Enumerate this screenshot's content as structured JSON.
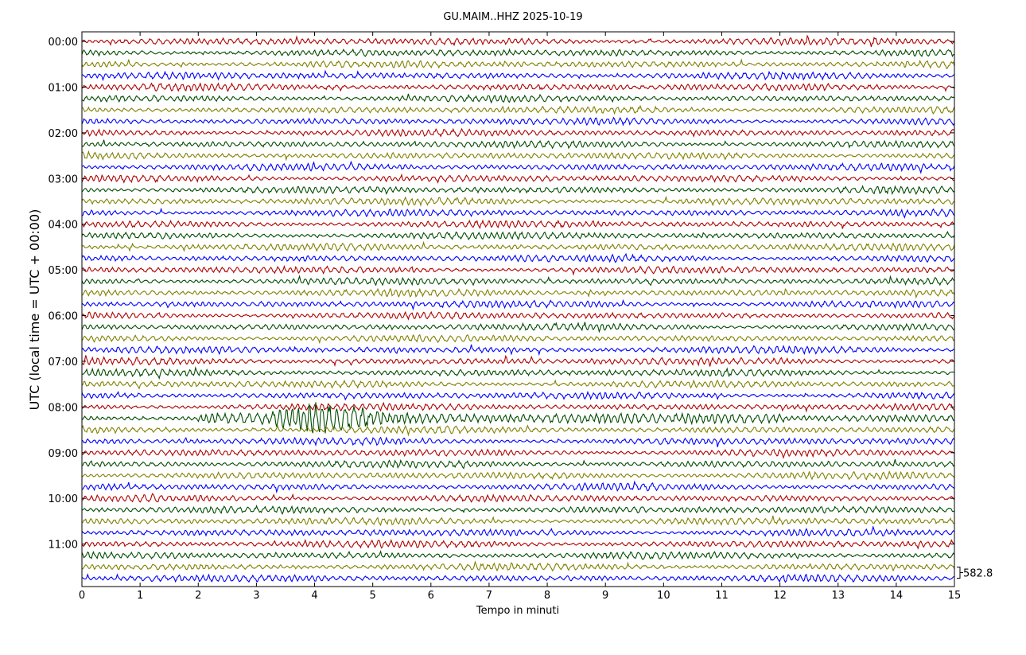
{
  "chart_data": {
    "type": "helicorder",
    "title": "GU.MAIM..HHZ 2025-10-19",
    "x_label": "Tempo in minuti",
    "y_label": "UTC (local time = UTC + 00:00)",
    "xlim": [
      0,
      15
    ],
    "xticks": [
      0,
      1,
      2,
      3,
      4,
      5,
      6,
      7,
      8,
      9,
      10,
      11,
      12,
      13,
      14,
      15
    ],
    "ylim": [
      -0.21,
      11.93
    ],
    "yticks": [
      {
        "value": 0,
        "label": "00:00"
      },
      {
        "value": 1,
        "label": "01:00"
      },
      {
        "value": 2,
        "label": "02:00"
      },
      {
        "value": 3,
        "label": "03:00"
      },
      {
        "value": 4,
        "label": "04:00"
      },
      {
        "value": 5,
        "label": "05:00"
      },
      {
        "value": 6,
        "label": "06:00"
      },
      {
        "value": 7,
        "label": "07:00"
      },
      {
        "value": 8,
        "label": "08:00"
      },
      {
        "value": 9,
        "label": "09:00"
      },
      {
        "value": 10,
        "label": "10:00"
      },
      {
        "value": 11,
        "label": "11:00"
      }
    ],
    "trace_count": 48,
    "trace_colors": [
      "#b00000",
      "#004c00",
      "#808000",
      "#0000ff"
    ],
    "scale": 582.8
  }
}
